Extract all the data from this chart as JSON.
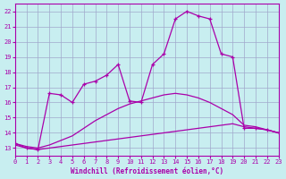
{
  "xlabel": "Windchill (Refroidissement éolien,°C)",
  "xlim": [
    0,
    23
  ],
  "ylim": [
    12.5,
    22.5
  ],
  "yticks": [
    13,
    14,
    15,
    16,
    17,
    18,
    19,
    20,
    21,
    22
  ],
  "xticks": [
    0,
    1,
    2,
    3,
    4,
    5,
    6,
    7,
    8,
    9,
    10,
    11,
    12,
    13,
    14,
    15,
    16,
    17,
    18,
    19,
    20,
    21,
    22,
    23
  ],
  "background_color": "#c8eef0",
  "grid_color": "#a0a8cc",
  "line_color": "#aa00aa",
  "curve1_x": [
    0,
    1,
    2,
    3,
    4,
    5,
    6,
    7,
    8,
    9,
    10,
    11,
    12,
    13,
    14,
    15,
    16,
    17,
    18,
    19,
    20,
    21,
    22,
    23
  ],
  "curve1_y": [
    13.3,
    13.0,
    12.9,
    16.6,
    16.5,
    16.0,
    17.2,
    17.4,
    17.8,
    18.5,
    16.1,
    16.0,
    18.5,
    19.2,
    21.5,
    22.0,
    21.7,
    21.5,
    19.2,
    19.0,
    14.3,
    14.3,
    14.2,
    14.0
  ],
  "curve2_x": [
    0,
    1,
    2,
    3,
    4,
    5,
    6,
    7,
    8,
    9,
    10,
    11,
    12,
    13,
    14,
    15,
    16,
    17,
    18,
    19,
    20,
    21,
    22,
    23
  ],
  "curve2_y": [
    13.3,
    13.1,
    13.0,
    13.2,
    13.5,
    13.8,
    14.3,
    14.8,
    15.2,
    15.6,
    15.9,
    16.1,
    16.3,
    16.5,
    16.6,
    16.5,
    16.3,
    16.0,
    15.6,
    15.2,
    14.5,
    14.4,
    14.2,
    14.0
  ],
  "curve3_x": [
    0,
    1,
    2,
    3,
    4,
    5,
    6,
    7,
    8,
    9,
    10,
    11,
    12,
    13,
    14,
    15,
    16,
    17,
    18,
    19,
    20,
    21,
    22,
    23
  ],
  "curve3_y": [
    13.2,
    13.0,
    12.9,
    13.0,
    13.1,
    13.2,
    13.3,
    13.4,
    13.5,
    13.6,
    13.7,
    13.8,
    13.9,
    14.0,
    14.1,
    14.2,
    14.3,
    14.4,
    14.5,
    14.6,
    14.4,
    14.3,
    14.2,
    14.0
  ]
}
